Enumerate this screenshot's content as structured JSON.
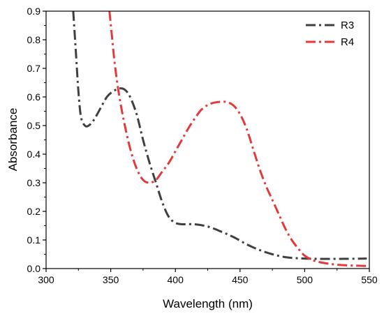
{
  "chart_data": {
    "type": "line",
    "xlabel": "Wavelength (nm)",
    "ylabel": "Absorbance",
    "xlim": [
      300,
      550
    ],
    "ylim": [
      0,
      0.9
    ],
    "x_ticks": [
      300,
      350,
      400,
      450,
      500,
      550
    ],
    "x_tick_labels": [
      "300",
      "350",
      "400",
      "450",
      "500",
      "550"
    ],
    "y_ticks": [
      0.0,
      0.1,
      0.2,
      0.3,
      0.4,
      0.5,
      0.6,
      0.7,
      0.8,
      0.9
    ],
    "y_tick_labels": [
      "0.0",
      "0.1",
      "0.2",
      "0.3",
      "0.4",
      "0.5",
      "0.6",
      "0.7",
      "0.8",
      "0.9"
    ],
    "grid": false,
    "legend_position": "top-right",
    "series": [
      {
        "name": "R3",
        "color": "#404040",
        "line_style": "dash-dot",
        "points": [
          [
            321,
            0.9
          ],
          [
            323,
            0.76
          ],
          [
            325,
            0.62
          ],
          [
            327,
            0.53
          ],
          [
            330,
            0.5
          ],
          [
            333,
            0.5
          ],
          [
            337,
            0.52
          ],
          [
            342,
            0.56
          ],
          [
            347,
            0.6
          ],
          [
            352,
            0.62
          ],
          [
            357,
            0.63
          ],
          [
            361,
            0.625
          ],
          [
            365,
            0.6
          ],
          [
            370,
            0.54
          ],
          [
            375,
            0.45
          ],
          [
            380,
            0.37
          ],
          [
            385,
            0.3
          ],
          [
            390,
            0.23
          ],
          [
            395,
            0.18
          ],
          [
            400,
            0.16
          ],
          [
            405,
            0.155
          ],
          [
            415,
            0.155
          ],
          [
            425,
            0.147
          ],
          [
            435,
            0.13
          ],
          [
            445,
            0.11
          ],
          [
            455,
            0.085
          ],
          [
            465,
            0.065
          ],
          [
            475,
            0.05
          ],
          [
            485,
            0.04
          ],
          [
            495,
            0.036
          ],
          [
            510,
            0.034
          ],
          [
            530,
            0.034
          ],
          [
            548,
            0.035
          ]
        ]
      },
      {
        "name": "R4",
        "color": "#e23a3a",
        "line_style": "dash-dot",
        "points": [
          [
            349,
            0.9
          ],
          [
            351,
            0.81
          ],
          [
            353,
            0.72
          ],
          [
            356,
            0.62
          ],
          [
            360,
            0.52
          ],
          [
            365,
            0.42
          ],
          [
            370,
            0.35
          ],
          [
            375,
            0.31
          ],
          [
            380,
            0.3
          ],
          [
            385,
            0.31
          ],
          [
            390,
            0.34
          ],
          [
            395,
            0.37
          ],
          [
            400,
            0.41
          ],
          [
            405,
            0.45
          ],
          [
            410,
            0.49
          ],
          [
            415,
            0.525
          ],
          [
            420,
            0.555
          ],
          [
            425,
            0.572
          ],
          [
            430,
            0.58
          ],
          [
            435,
            0.583
          ],
          [
            440,
            0.582
          ],
          [
            445,
            0.57
          ],
          [
            450,
            0.54
          ],
          [
            455,
            0.49
          ],
          [
            460,
            0.42
          ],
          [
            465,
            0.35
          ],
          [
            470,
            0.29
          ],
          [
            475,
            0.24
          ],
          [
            480,
            0.19
          ],
          [
            485,
            0.14
          ],
          [
            490,
            0.1
          ],
          [
            495,
            0.07
          ],
          [
            500,
            0.045
          ],
          [
            505,
            0.032
          ],
          [
            510,
            0.024
          ],
          [
            520,
            0.016
          ],
          [
            530,
            0.012
          ],
          [
            540,
            0.01
          ],
          [
            549,
            0.009
          ]
        ]
      }
    ]
  }
}
